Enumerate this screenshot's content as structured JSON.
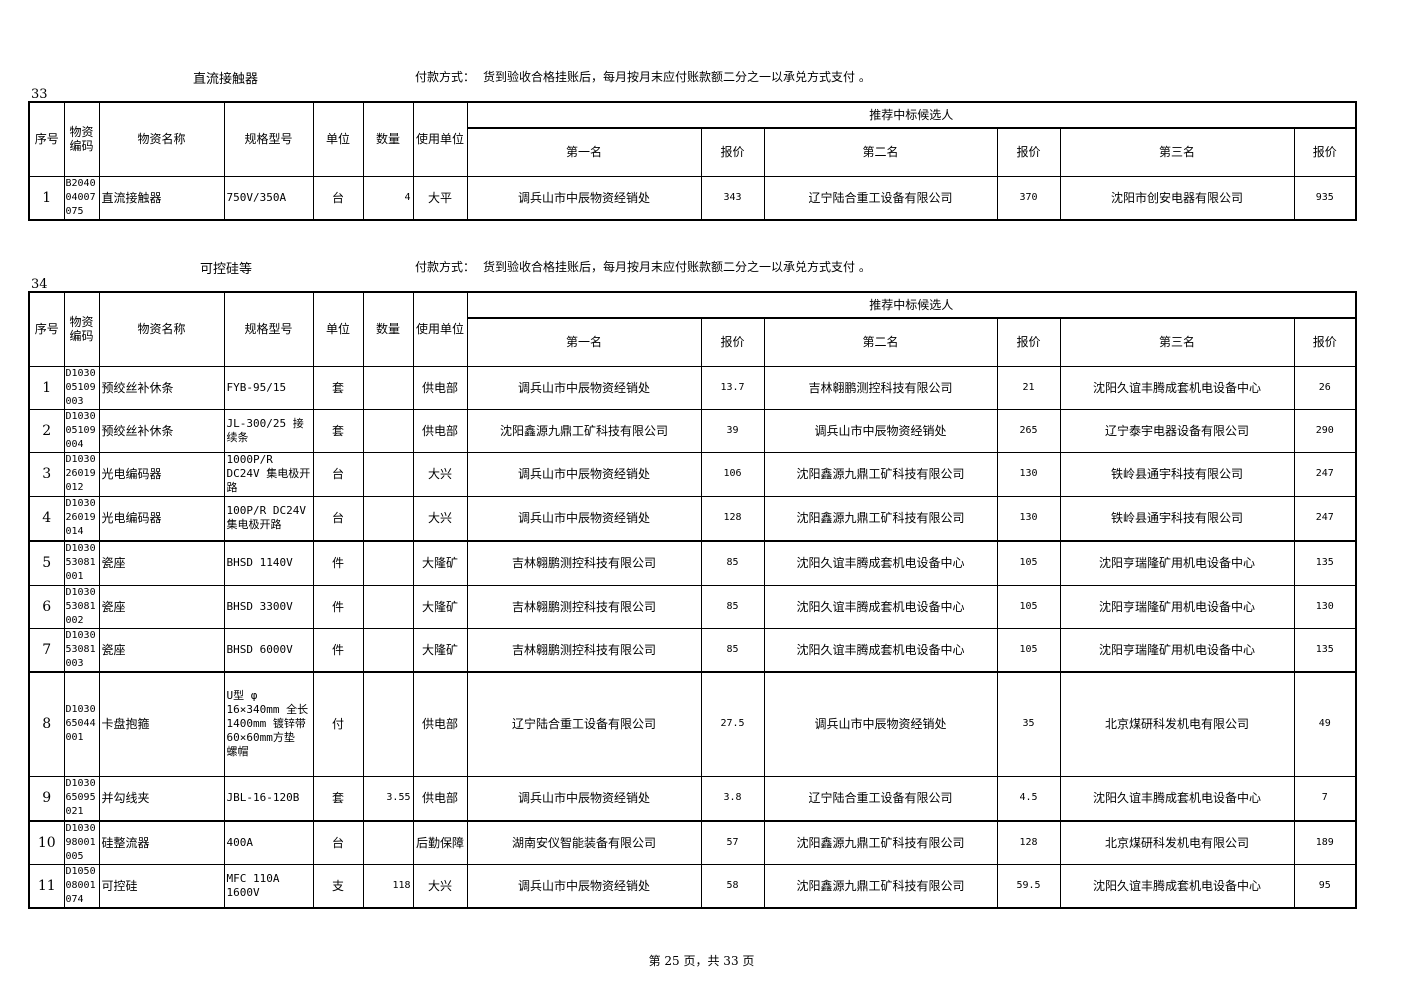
{
  "columns": {
    "seq": "序号",
    "code": "物资编码",
    "name": "物资名称",
    "spec": "规格型号",
    "unit": "单位",
    "qty": "数量",
    "user": "使用单位",
    "recommend": "推荐中标候选人",
    "first": "第一名",
    "price1": "报价",
    "second": "第二名",
    "price2": "报价",
    "third": "第三名",
    "price3": "报价"
  },
  "sections": [
    {
      "number": "33",
      "title": "直流接触器",
      "payment_label": "付款方式：",
      "payment_text": "货到验收合格挂账后，每月按月末应付账款额二分之一以承兑方式支付 。",
      "rows": [
        {
          "seq": "1",
          "code": "B2040 04007 075",
          "name": "直流接触器",
          "spec": "750V/350A",
          "unit": "台",
          "qty": "4",
          "user": "大平",
          "first": "调兵山市中辰物资经销处",
          "p1": "343",
          "second": "辽宁陆合重工设备有限公司",
          "p2": "370",
          "third": "沈阳市创安电器有限公司",
          "p3": "935"
        }
      ]
    },
    {
      "number": "34",
      "title": "可控硅等",
      "payment_label": "付款方式：",
      "payment_text": "货到验收合格挂账后，每月按月末应付账款额二分之一以承兑方式支付 。",
      "rows": [
        {
          "seq": "1",
          "code": "D1030 05109 003",
          "name": "预绞丝补休条",
          "spec": "FYB-95/15",
          "unit": "套",
          "qty": "",
          "user": "供电部",
          "first": "调兵山市中辰物资经销处",
          "p1": "13.7",
          "second": "吉林翱鹏测控科技有限公司",
          "p2": "21",
          "third": "沈阳久谊丰腾成套机电设备中心",
          "p3": "26"
        },
        {
          "seq": "2",
          "code": "D1030 05109 004",
          "name": "预绞丝补休条",
          "spec": "JL-300/25 接续条",
          "unit": "套",
          "qty": "",
          "user": "供电部",
          "first": "沈阳鑫源九鼎工矿科技有限公司",
          "p1": "39",
          "second": "调兵山市中辰物资经销处",
          "p2": "265",
          "third": "辽宁泰宇电器设备有限公司",
          "p3": "290"
        },
        {
          "seq": "3",
          "code": "D1030 26019 012",
          "name": "光电编码器",
          "spec": "1000P/R DC24V 集电极开路",
          "unit": "台",
          "qty": "",
          "user": "大兴",
          "first": "调兵山市中辰物资经销处",
          "p1": "106",
          "second": "沈阳鑫源九鼎工矿科技有限公司",
          "p2": "130",
          "third": "铁岭县通宇科技有限公司",
          "p3": "247"
        },
        {
          "seq": "4",
          "code": "D1030 26019 014",
          "name": "光电编码器",
          "spec": "100P/R DC24V 集电极开路",
          "unit": "台",
          "qty": "",
          "user": "大兴",
          "first": "调兵山市中辰物资经销处",
          "p1": "128",
          "second": "沈阳鑫源九鼎工矿科技有限公司",
          "p2": "130",
          "third": "铁岭县通宇科技有限公司",
          "p3": "247"
        },
        {
          "seq": "5",
          "code": "D1030 53081 001",
          "name": "瓷座",
          "spec": "BHSD 1140V",
          "unit": "件",
          "qty": "",
          "user": "大隆矿",
          "first": "吉林翱鹏测控科技有限公司",
          "p1": "85",
          "second": "沈阳久谊丰腾成套机电设备中心",
          "p2": "105",
          "third": "沈阳亨瑞隆矿用机电设备中心",
          "p3": "135"
        },
        {
          "seq": "6",
          "code": "D1030 53081 002",
          "name": "瓷座",
          "spec": "BHSD 3300V",
          "unit": "件",
          "qty": "",
          "user": "大隆矿",
          "first": "吉林翱鹏测控科技有限公司",
          "p1": "85",
          "second": "沈阳久谊丰腾成套机电设备中心",
          "p2": "105",
          "third": "沈阳亨瑞隆矿用机电设备中心",
          "p3": "130"
        },
        {
          "seq": "7",
          "code": "D1030 53081 003",
          "name": "瓷座",
          "spec": "BHSD 6000V",
          "unit": "件",
          "qty": "",
          "user": "大隆矿",
          "first": "吉林翱鹏测控科技有限公司",
          "p1": "85",
          "second": "沈阳久谊丰腾成套机电设备中心",
          "p2": "105",
          "third": "沈阳亨瑞隆矿用机电设备中心",
          "p3": "135"
        },
        {
          "seq": "8",
          "code": "D1030 65044 001",
          "name": "卡盘抱箍",
          "spec": "U型 φ 16×340mm 全长1400mm 镀锌带60×60mm方垫 螺帽",
          "unit": "付",
          "qty": "",
          "user": "供电部",
          "first": "辽宁陆合重工设备有限公司",
          "p1": "27.5",
          "second": "调兵山市中辰物资经销处",
          "p2": "35",
          "third": "北京煤研科发机电有限公司",
          "p3": "49"
        },
        {
          "seq": "9",
          "code": "D1030 65095 021",
          "name": "并勾线夹",
          "spec": "JBL-16-120B",
          "unit": "套",
          "qty": "3.55",
          "user": "供电部",
          "first": "调兵山市中辰物资经销处",
          "p1": "3.8",
          "second": "辽宁陆合重工设备有限公司",
          "p2": "4.5",
          "third": "沈阳久谊丰腾成套机电设备中心",
          "p3": "7"
        },
        {
          "seq": "10",
          "code": "D1030 98001 005",
          "name": "硅整流器",
          "spec": "400A",
          "unit": "台",
          "qty": "",
          "user": "后勤保障",
          "first": "湖南安仪智能装备有限公司",
          "p1": "57",
          "second": "沈阳鑫源九鼎工矿科技有限公司",
          "p2": "128",
          "third": "北京煤研科发机电有限公司",
          "p3": "189"
        },
        {
          "seq": "11",
          "code": "D1050 08001 074",
          "name": "可控硅",
          "spec": "MFC 110A 1600V",
          "unit": "支",
          "qty": "118",
          "user": "大兴",
          "first": "调兵山市中辰物资经销处",
          "p1": "58",
          "second": "沈阳鑫源九鼎工矿科技有限公司",
          "p2": "59.5",
          "third": "沈阳久谊丰腾成套机电设备中心",
          "p3": "95"
        }
      ]
    }
  ],
  "footer": "第 25 页，共 33 页"
}
